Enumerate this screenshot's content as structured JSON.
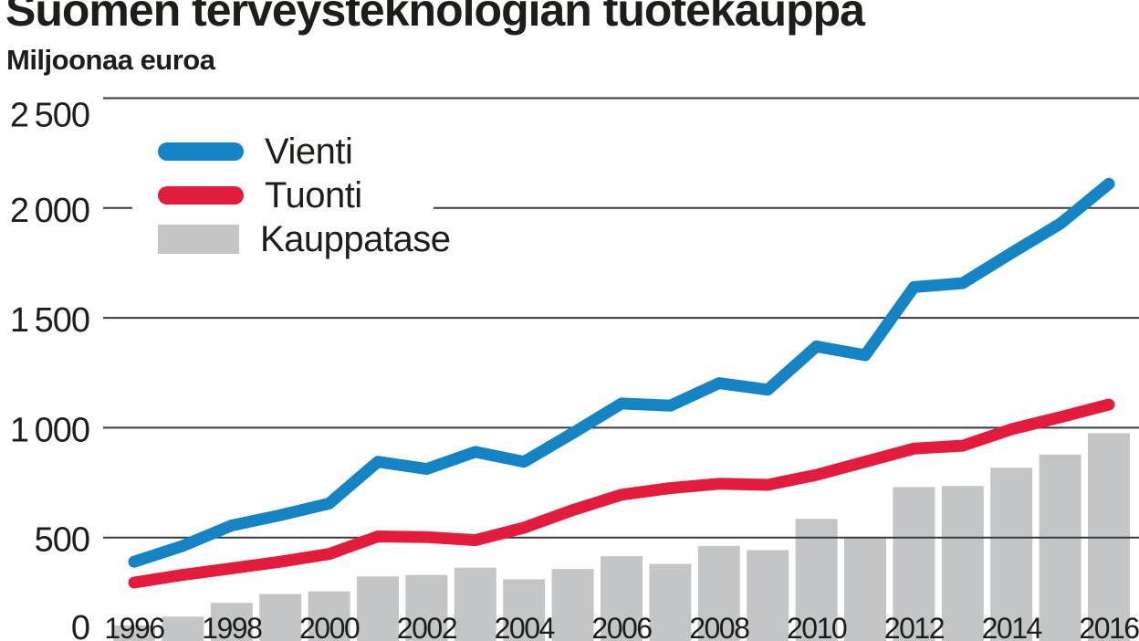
{
  "page": {
    "title": "Suomen terveysteknologian tuotekauppa",
    "unit_label": "Miljoonaa euroa"
  },
  "colors": {
    "vienti_blue": "#1484c4",
    "tuonti_red": "#e31b3d",
    "kauppatase_gray": "#c4c5c7",
    "gridline": "#3a3a3a",
    "text": "#1d1d1b",
    "background": "#ffffff"
  },
  "chart_data": {
    "type": "line+bar",
    "title": "Suomen terveysteknologian tuotekauppa",
    "ylabel": "Miljoonaa euroa",
    "xlabel": "",
    "years": [
      1996,
      1997,
      1998,
      1999,
      2000,
      2001,
      2002,
      2003,
      2004,
      2005,
      2006,
      2007,
      2008,
      2009,
      2010,
      2011,
      2012,
      2013,
      2014,
      2015,
      2016
    ],
    "series": [
      {
        "name": "Vienti",
        "type": "line",
        "color": "#1484c4",
        "values": [
          390,
          462,
          555,
          602,
          655,
          845,
          812,
          890,
          845,
          975,
          1110,
          1100,
          1203,
          1173,
          1370,
          1330,
          1640,
          1658,
          1795,
          1928,
          2110
        ]
      },
      {
        "name": "Tuonti",
        "type": "line",
        "color": "#e31b3d",
        "values": [
          295,
          330,
          360,
          390,
          425,
          505,
          502,
          488,
          545,
          625,
          695,
          725,
          745,
          740,
          785,
          845,
          905,
          918,
          993,
          1048,
          1105
        ]
      },
      {
        "name": "Kauppatase",
        "type": "bar",
        "color": "#c4c5c7",
        "values": [
          100,
          140,
          203,
          243,
          255,
          323,
          330,
          363,
          310,
          357,
          415,
          380,
          462,
          443,
          585,
          503,
          730,
          735,
          818,
          878,
          975
        ]
      }
    ],
    "xtick_labels": [
      "1996",
      "1998",
      "2000",
      "2002",
      "2004",
      "2006",
      "2008",
      "2010",
      "2012",
      "2014",
      "2016"
    ],
    "yticks": [
      0,
      500,
      1000,
      1500,
      2000,
      2500
    ],
    "ytick_labels": [
      "0",
      "500",
      "1 000",
      "1 500",
      "2 000",
      "2 500"
    ],
    "ylim": [
      0,
      2500
    ],
    "grid": true,
    "legend_position": "top-left"
  }
}
